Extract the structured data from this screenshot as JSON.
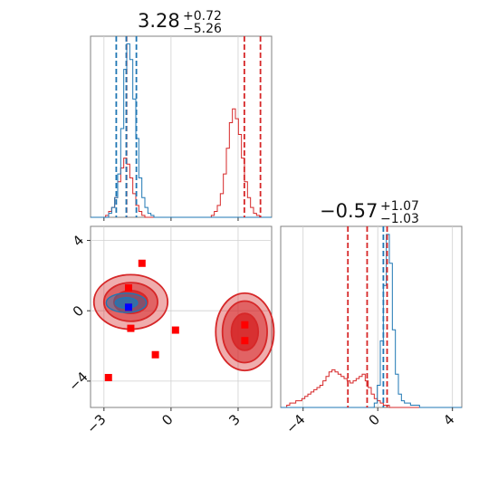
{
  "colors": {
    "red": "#d62728",
    "blue": "#1f77b4",
    "marker_red": "#ff0000",
    "marker_blue": "#0000ff",
    "grid": "#d0d0d0"
  },
  "titles": {
    "p1": {
      "value": "3.28",
      "plus": "+0.72",
      "minus": "−5.26"
    },
    "p2": {
      "value": "−0.57",
      "plus": "+1.07",
      "minus": "−1.03"
    }
  },
  "ticks": {
    "p1": [
      {
        "v": -3,
        "label": "−3"
      },
      {
        "v": 0,
        "label": "0"
      },
      {
        "v": 3,
        "label": "3"
      }
    ],
    "p2": [
      {
        "v": -4,
        "label": "−4"
      },
      {
        "v": 0,
        "label": "0"
      },
      {
        "v": 4,
        "label": "4"
      }
    ],
    "p2_y": [
      {
        "v": -4,
        "label": "−4"
      },
      {
        "v": 0,
        "label": "0"
      },
      {
        "v": 4,
        "label": "4"
      }
    ]
  },
  "chart_data": [
    {
      "type": "histogram",
      "panel": "p1-marginal",
      "xlim": [
        -3.6,
        4.5
      ],
      "bins_x": [
        -3.6,
        4.5,
        60
      ],
      "series": [
        {
          "color_key": "red",
          "counts": [
            0,
            0,
            0,
            0,
            0,
            0.01,
            0.03,
            0.05,
            0.1,
            0.18,
            0.25,
            0.3,
            0.27,
            0.2,
            0.12,
            0.06,
            0.03,
            0.01,
            0,
            0,
            0,
            0,
            0,
            0,
            0,
            0,
            0,
            0,
            0,
            0,
            0,
            0,
            0,
            0,
            0,
            0,
            0,
            0,
            0,
            0,
            0.01,
            0.03,
            0.06,
            0.12,
            0.22,
            0.35,
            0.48,
            0.55,
            0.5,
            0.42,
            0.3,
            0.18,
            0.1,
            0.05,
            0.02,
            0.01,
            0,
            0,
            0,
            0
          ]
        },
        {
          "color_key": "blue",
          "counts": [
            0,
            0,
            0,
            0,
            0,
            0,
            0.02,
            0.05,
            0.1,
            0.22,
            0.45,
            0.75,
            0.88,
            0.8,
            0.6,
            0.4,
            0.2,
            0.1,
            0.05,
            0.02,
            0.01,
            0,
            0,
            0,
            0,
            0,
            0,
            0,
            0,
            0,
            0,
            0,
            0,
            0,
            0,
            0,
            0,
            0,
            0,
            0,
            0,
            0,
            0,
            0,
            0,
            0,
            0,
            0,
            0,
            0,
            0,
            0,
            0,
            0,
            0,
            0,
            0,
            0,
            0,
            0
          ]
        }
      ],
      "vlines": [
        {
          "x": -1.99,
          "color_key": "red"
        },
        {
          "x": 3.28,
          "color_key": "red"
        },
        {
          "x": 4.0,
          "color_key": "red"
        },
        {
          "x": -2.45,
          "color_key": "blue"
        },
        {
          "x": -2.0,
          "color_key": "blue"
        },
        {
          "x": -1.55,
          "color_key": "blue"
        }
      ]
    },
    {
      "type": "histogram",
      "panel": "p2-marginal",
      "xlim": [
        -5.2,
        4.5
      ],
      "bins_x": [
        -5.2,
        4.5,
        60
      ],
      "series": [
        {
          "color_key": "red",
          "counts": [
            0,
            0,
            0.01,
            0.02,
            0.02,
            0.03,
            0.03,
            0.04,
            0.05,
            0.06,
            0.07,
            0.08,
            0.09,
            0.1,
            0.12,
            0.14,
            0.16,
            0.17,
            0.16,
            0.15,
            0.14,
            0.13,
            0.12,
            0.11,
            0.12,
            0.13,
            0.14,
            0.15,
            0.12,
            0.09,
            0.06,
            0.04,
            0.03,
            0.02,
            0.01,
            0.01,
            0,
            0,
            0,
            0,
            0,
            0,
            0,
            0,
            0,
            0,
            0,
            0,
            0,
            0,
            0,
            0,
            0,
            0,
            0,
            0,
            0,
            0,
            0,
            0
          ]
        },
        {
          "color_key": "blue",
          "counts": [
            0,
            0,
            0,
            0,
            0,
            0,
            0,
            0,
            0,
            0,
            0,
            0,
            0,
            0,
            0,
            0,
            0,
            0,
            0,
            0,
            0,
            0,
            0,
            0,
            0,
            0,
            0,
            0,
            0,
            0,
            0,
            0.02,
            0.1,
            0.3,
            0.55,
            0.78,
            0.65,
            0.35,
            0.15,
            0.06,
            0.03,
            0.02,
            0.02,
            0.01,
            0.01,
            0.01,
            0,
            0,
            0,
            0,
            0,
            0,
            0,
            0,
            0,
            0,
            0,
            0,
            0,
            0
          ]
        }
      ],
      "vlines": [
        {
          "x": -1.6,
          "color_key": "red"
        },
        {
          "x": -0.57,
          "color_key": "red"
        },
        {
          "x": 0.5,
          "color_key": "red"
        },
        {
          "x": 0.3,
          "color_key": "blue"
        }
      ]
    },
    {
      "type": "scatter",
      "panel": "joint",
      "xlim": [
        -3.6,
        4.5
      ],
      "ylim": [
        -5.5,
        4.8
      ],
      "gridlines_x": [
        -3,
        0,
        3
      ],
      "gridlines_y": [
        -4,
        0,
        4
      ],
      "contours": [
        {
          "color_key": "red",
          "center": [
            -1.8,
            0.5
          ],
          "radii": [
            [
              1.65,
              1.55
            ],
            [
              1.2,
              1.1
            ],
            [
              0.75,
              0.65
            ]
          ]
        },
        {
          "color_key": "red",
          "center": [
            3.3,
            -1.2
          ],
          "radii": [
            [
              1.3,
              2.2
            ],
            [
              1.0,
              1.75
            ],
            [
              0.6,
              1.05
            ]
          ]
        },
        {
          "color_key": "blue",
          "center": [
            -2.0,
            0.45
          ],
          "radii": [
            [
              0.9,
              0.55
            ],
            [
              0.5,
              0.3
            ]
          ]
        }
      ],
      "red_points": [
        [
          -1.3,
          2.7
        ],
        [
          -1.9,
          1.3
        ],
        [
          -1.9,
          0.2
        ],
        [
          -1.8,
          -1.0
        ],
        [
          0.2,
          -1.1
        ],
        [
          -0.7,
          -2.5
        ],
        [
          -2.8,
          -3.8
        ],
        [
          3.3,
          -0.8
        ],
        [
          3.3,
          -1.7
        ]
      ],
      "blue_points": [
        [
          -1.9,
          0.2
        ]
      ]
    }
  ]
}
